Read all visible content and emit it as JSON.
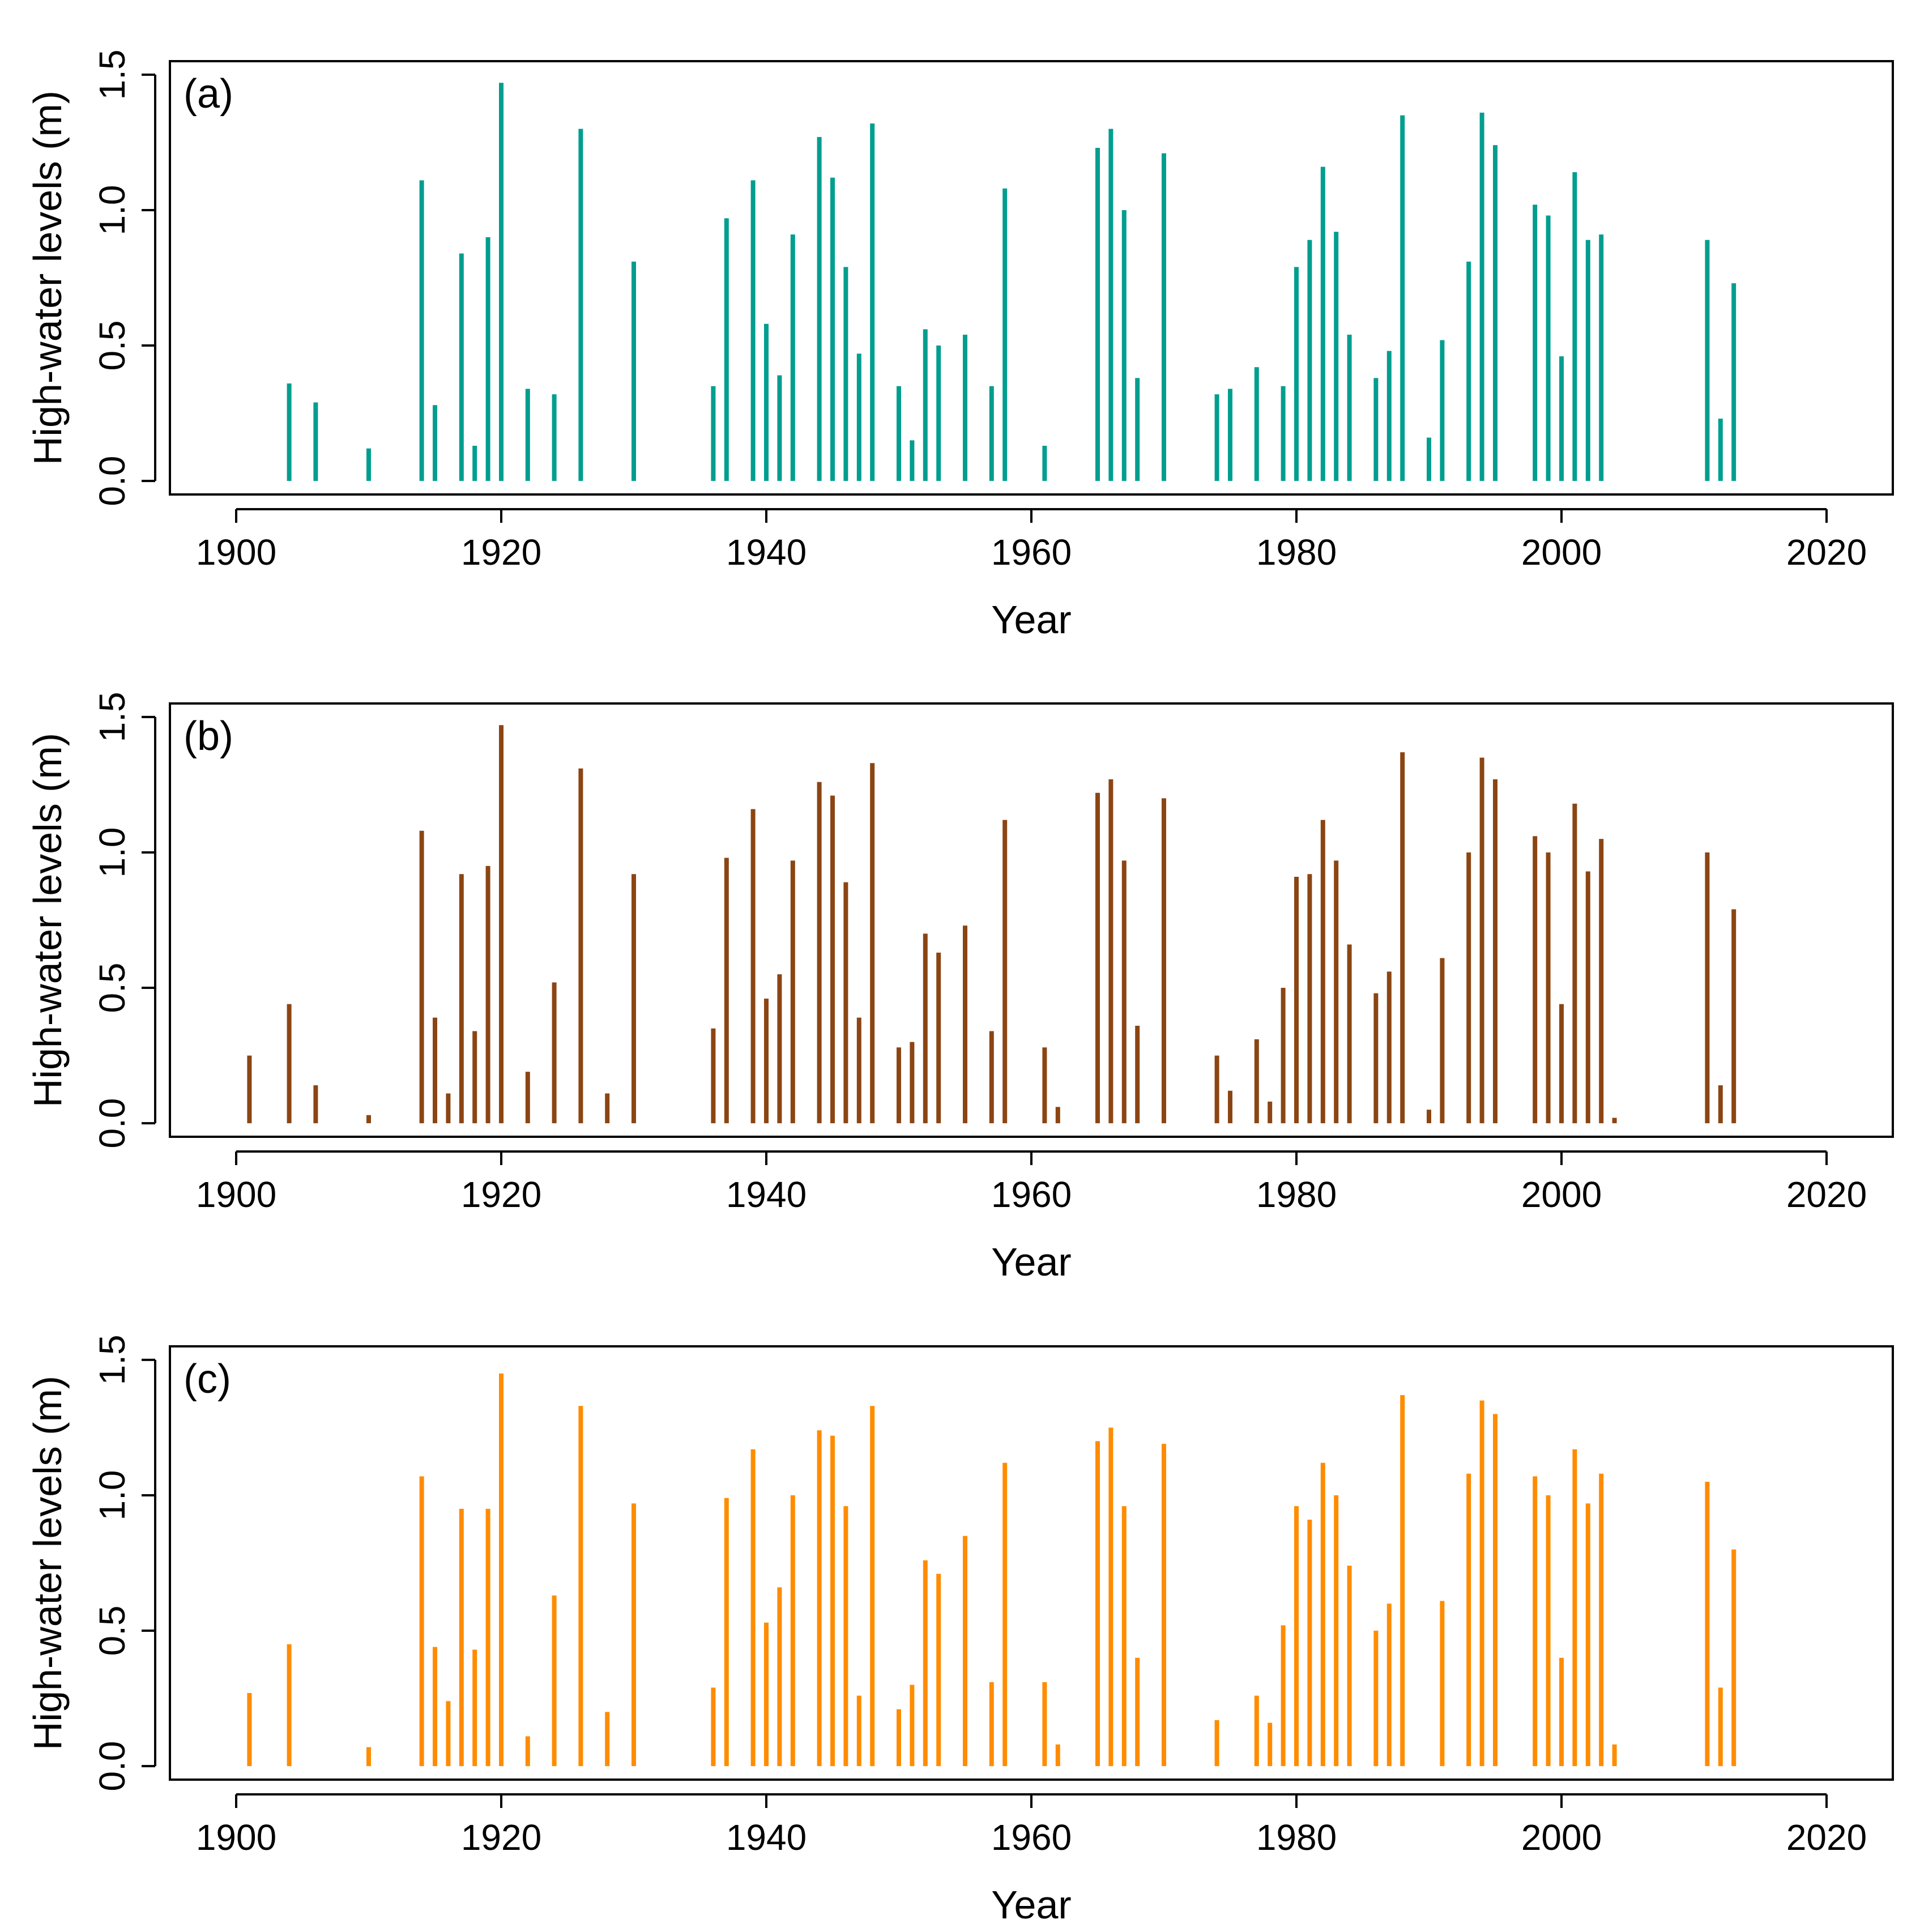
{
  "chart_data": [
    {
      "type": "bar",
      "panel_label": "(a)",
      "color": "#009E8F",
      "xlabel": "Year",
      "ylabel": "High-water levels (m)",
      "xlim": [
        1895,
        2025
      ],
      "ylim": [
        -0.05,
        1.55
      ],
      "xticks": [
        1900,
        1920,
        1940,
        1960,
        1980,
        2000,
        2020
      ],
      "yticks": [
        0.0,
        0.5,
        1.0,
        1.5
      ],
      "xtick_labels": [
        "1900",
        "1920",
        "1940",
        "1960",
        "1980",
        "2000",
        "2020"
      ],
      "ytick_labels": [
        "0.0",
        "0.5",
        "1.0",
        "1.5"
      ],
      "x": [
        1904,
        1906,
        1910,
        1914,
        1915,
        1917,
        1918,
        1919,
        1920,
        1922,
        1924,
        1926,
        1930,
        1936,
        1937,
        1939,
        1940,
        1941,
        1942,
        1944,
        1945,
        1946,
        1947,
        1948,
        1950,
        1951,
        1952,
        1953,
        1955,
        1957,
        1958,
        1961,
        1965,
        1966,
        1967,
        1968,
        1970,
        1974,
        1975,
        1977,
        1979,
        1980,
        1981,
        1982,
        1983,
        1984,
        1986,
        1987,
        1988,
        1990,
        1991,
        1993,
        1994,
        1995,
        1998,
        1999,
        2000,
        2001,
        2002,
        2003,
        2011,
        2012,
        2013
      ],
      "values": [
        0.36,
        0.29,
        0.12,
        1.11,
        0.28,
        0.84,
        0.13,
        0.9,
        1.47,
        0.34,
        0.32,
        1.3,
        0.81,
        0.35,
        0.97,
        1.11,
        0.58,
        0.39,
        0.91,
        1.27,
        1.12,
        0.79,
        0.47,
        1.32,
        0.35,
        0.15,
        0.56,
        0.5,
        0.54,
        0.35,
        1.08,
        0.13,
        1.23,
        1.3,
        1.0,
        0.38,
        1.21,
        0.32,
        0.34,
        0.42,
        0.35,
        0.79,
        0.89,
        1.16,
        0.92,
        0.54,
        0.38,
        0.48,
        1.35,
        0.16,
        0.52,
        0.81,
        1.36,
        1.24,
        1.02,
        0.98,
        0.46,
        1.14,
        0.89,
        0.91,
        0.89,
        0.23,
        0.73
      ]
    },
    {
      "type": "bar",
      "panel_label": "(b)",
      "color": "#8B4513",
      "xlabel": "Year",
      "ylabel": "High-water levels (m)",
      "xlim": [
        1895,
        2025
      ],
      "ylim": [
        -0.05,
        1.55
      ],
      "xticks": [
        1900,
        1920,
        1940,
        1960,
        1980,
        2000,
        2020
      ],
      "yticks": [
        0.0,
        0.5,
        1.0,
        1.5
      ],
      "xtick_labels": [
        "1900",
        "1920",
        "1940",
        "1960",
        "1980",
        "2000",
        "2020"
      ],
      "ytick_labels": [
        "0.0",
        "0.5",
        "1.0",
        "1.5"
      ],
      "x": [
        1901,
        1904,
        1906,
        1910,
        1914,
        1915,
        1916,
        1917,
        1918,
        1919,
        1920,
        1922,
        1924,
        1926,
        1928,
        1930,
        1936,
        1937,
        1939,
        1940,
        1941,
        1942,
        1944,
        1945,
        1946,
        1947,
        1948,
        1950,
        1951,
        1952,
        1953,
        1955,
        1957,
        1958,
        1961,
        1962,
        1965,
        1966,
        1967,
        1968,
        1970,
        1974,
        1975,
        1977,
        1978,
        1979,
        1980,
        1981,
        1982,
        1983,
        1984,
        1986,
        1987,
        1988,
        1990,
        1991,
        1993,
        1994,
        1995,
        1998,
        1999,
        2000,
        2001,
        2002,
        2003,
        2004,
        2011,
        2012,
        2013
      ],
      "values": [
        0.25,
        0.44,
        0.14,
        0.03,
        1.08,
        0.39,
        0.11,
        0.92,
        0.34,
        0.95,
        1.47,
        0.19,
        0.52,
        1.31,
        0.11,
        0.92,
        0.35,
        0.98,
        1.16,
        0.46,
        0.55,
        0.97,
        1.26,
        1.21,
        0.89,
        0.39,
        1.33,
        0.28,
        0.3,
        0.7,
        0.63,
        0.73,
        0.34,
        1.12,
        0.28,
        0.06,
        1.22,
        1.27,
        0.97,
        0.36,
        1.2,
        0.25,
        0.12,
        0.31,
        0.08,
        0.5,
        0.91,
        0.92,
        1.12,
        0.97,
        0.66,
        0.48,
        0.56,
        1.37,
        0.05,
        0.61,
        1.0,
        1.35,
        1.27,
        1.06,
        1.0,
        0.44,
        1.18,
        0.93,
        1.05,
        0.02,
        1.0,
        0.14,
        0.79
      ]
    },
    {
      "type": "bar",
      "panel_label": "(c)",
      "color": "#FF8C00",
      "xlabel": "Year",
      "ylabel": "High-water levels (m)",
      "xlim": [
        1895,
        2025
      ],
      "ylim": [
        -0.05,
        1.55
      ],
      "xticks": [
        1900,
        1920,
        1940,
        1960,
        1980,
        2000,
        2020
      ],
      "yticks": [
        0.0,
        0.5,
        1.0,
        1.5
      ],
      "xtick_labels": [
        "1900",
        "1920",
        "1940",
        "1960",
        "1980",
        "2000",
        "2020"
      ],
      "ytick_labels": [
        "0.0",
        "0.5",
        "1.0",
        "1.5"
      ],
      "x": [
        1901,
        1904,
        1910,
        1914,
        1915,
        1916,
        1917,
        1918,
        1919,
        1920,
        1922,
        1924,
        1926,
        1928,
        1930,
        1936,
        1937,
        1939,
        1940,
        1941,
        1942,
        1944,
        1945,
        1946,
        1947,
        1948,
        1950,
        1951,
        1952,
        1953,
        1955,
        1957,
        1958,
        1961,
        1962,
        1965,
        1966,
        1967,
        1968,
        1970,
        1974,
        1977,
        1978,
        1979,
        1980,
        1981,
        1982,
        1983,
        1984,
        1986,
        1987,
        1988,
        1991,
        1993,
        1994,
        1995,
        1998,
        1999,
        2000,
        2001,
        2002,
        2003,
        2004,
        2011,
        2012,
        2013
      ],
      "values": [
        0.27,
        0.45,
        0.07,
        1.07,
        0.44,
        0.24,
        0.95,
        0.43,
        0.95,
        1.45,
        0.11,
        0.63,
        1.33,
        0.2,
        0.97,
        0.29,
        0.99,
        1.17,
        0.53,
        0.66,
        1.0,
        1.24,
        1.22,
        0.96,
        0.26,
        1.33,
        0.21,
        0.3,
        0.76,
        0.71,
        0.85,
        0.31,
        1.12,
        0.31,
        0.08,
        1.2,
        1.25,
        0.96,
        0.4,
        1.19,
        0.17,
        0.26,
        0.16,
        0.52,
        0.96,
        0.91,
        1.12,
        1.0,
        0.74,
        0.5,
        0.6,
        1.37,
        0.61,
        1.08,
        1.35,
        1.3,
        1.07,
        1.0,
        0.4,
        1.17,
        0.97,
        1.08,
        0.08,
        1.05,
        0.29,
        0.8
      ]
    }
  ]
}
